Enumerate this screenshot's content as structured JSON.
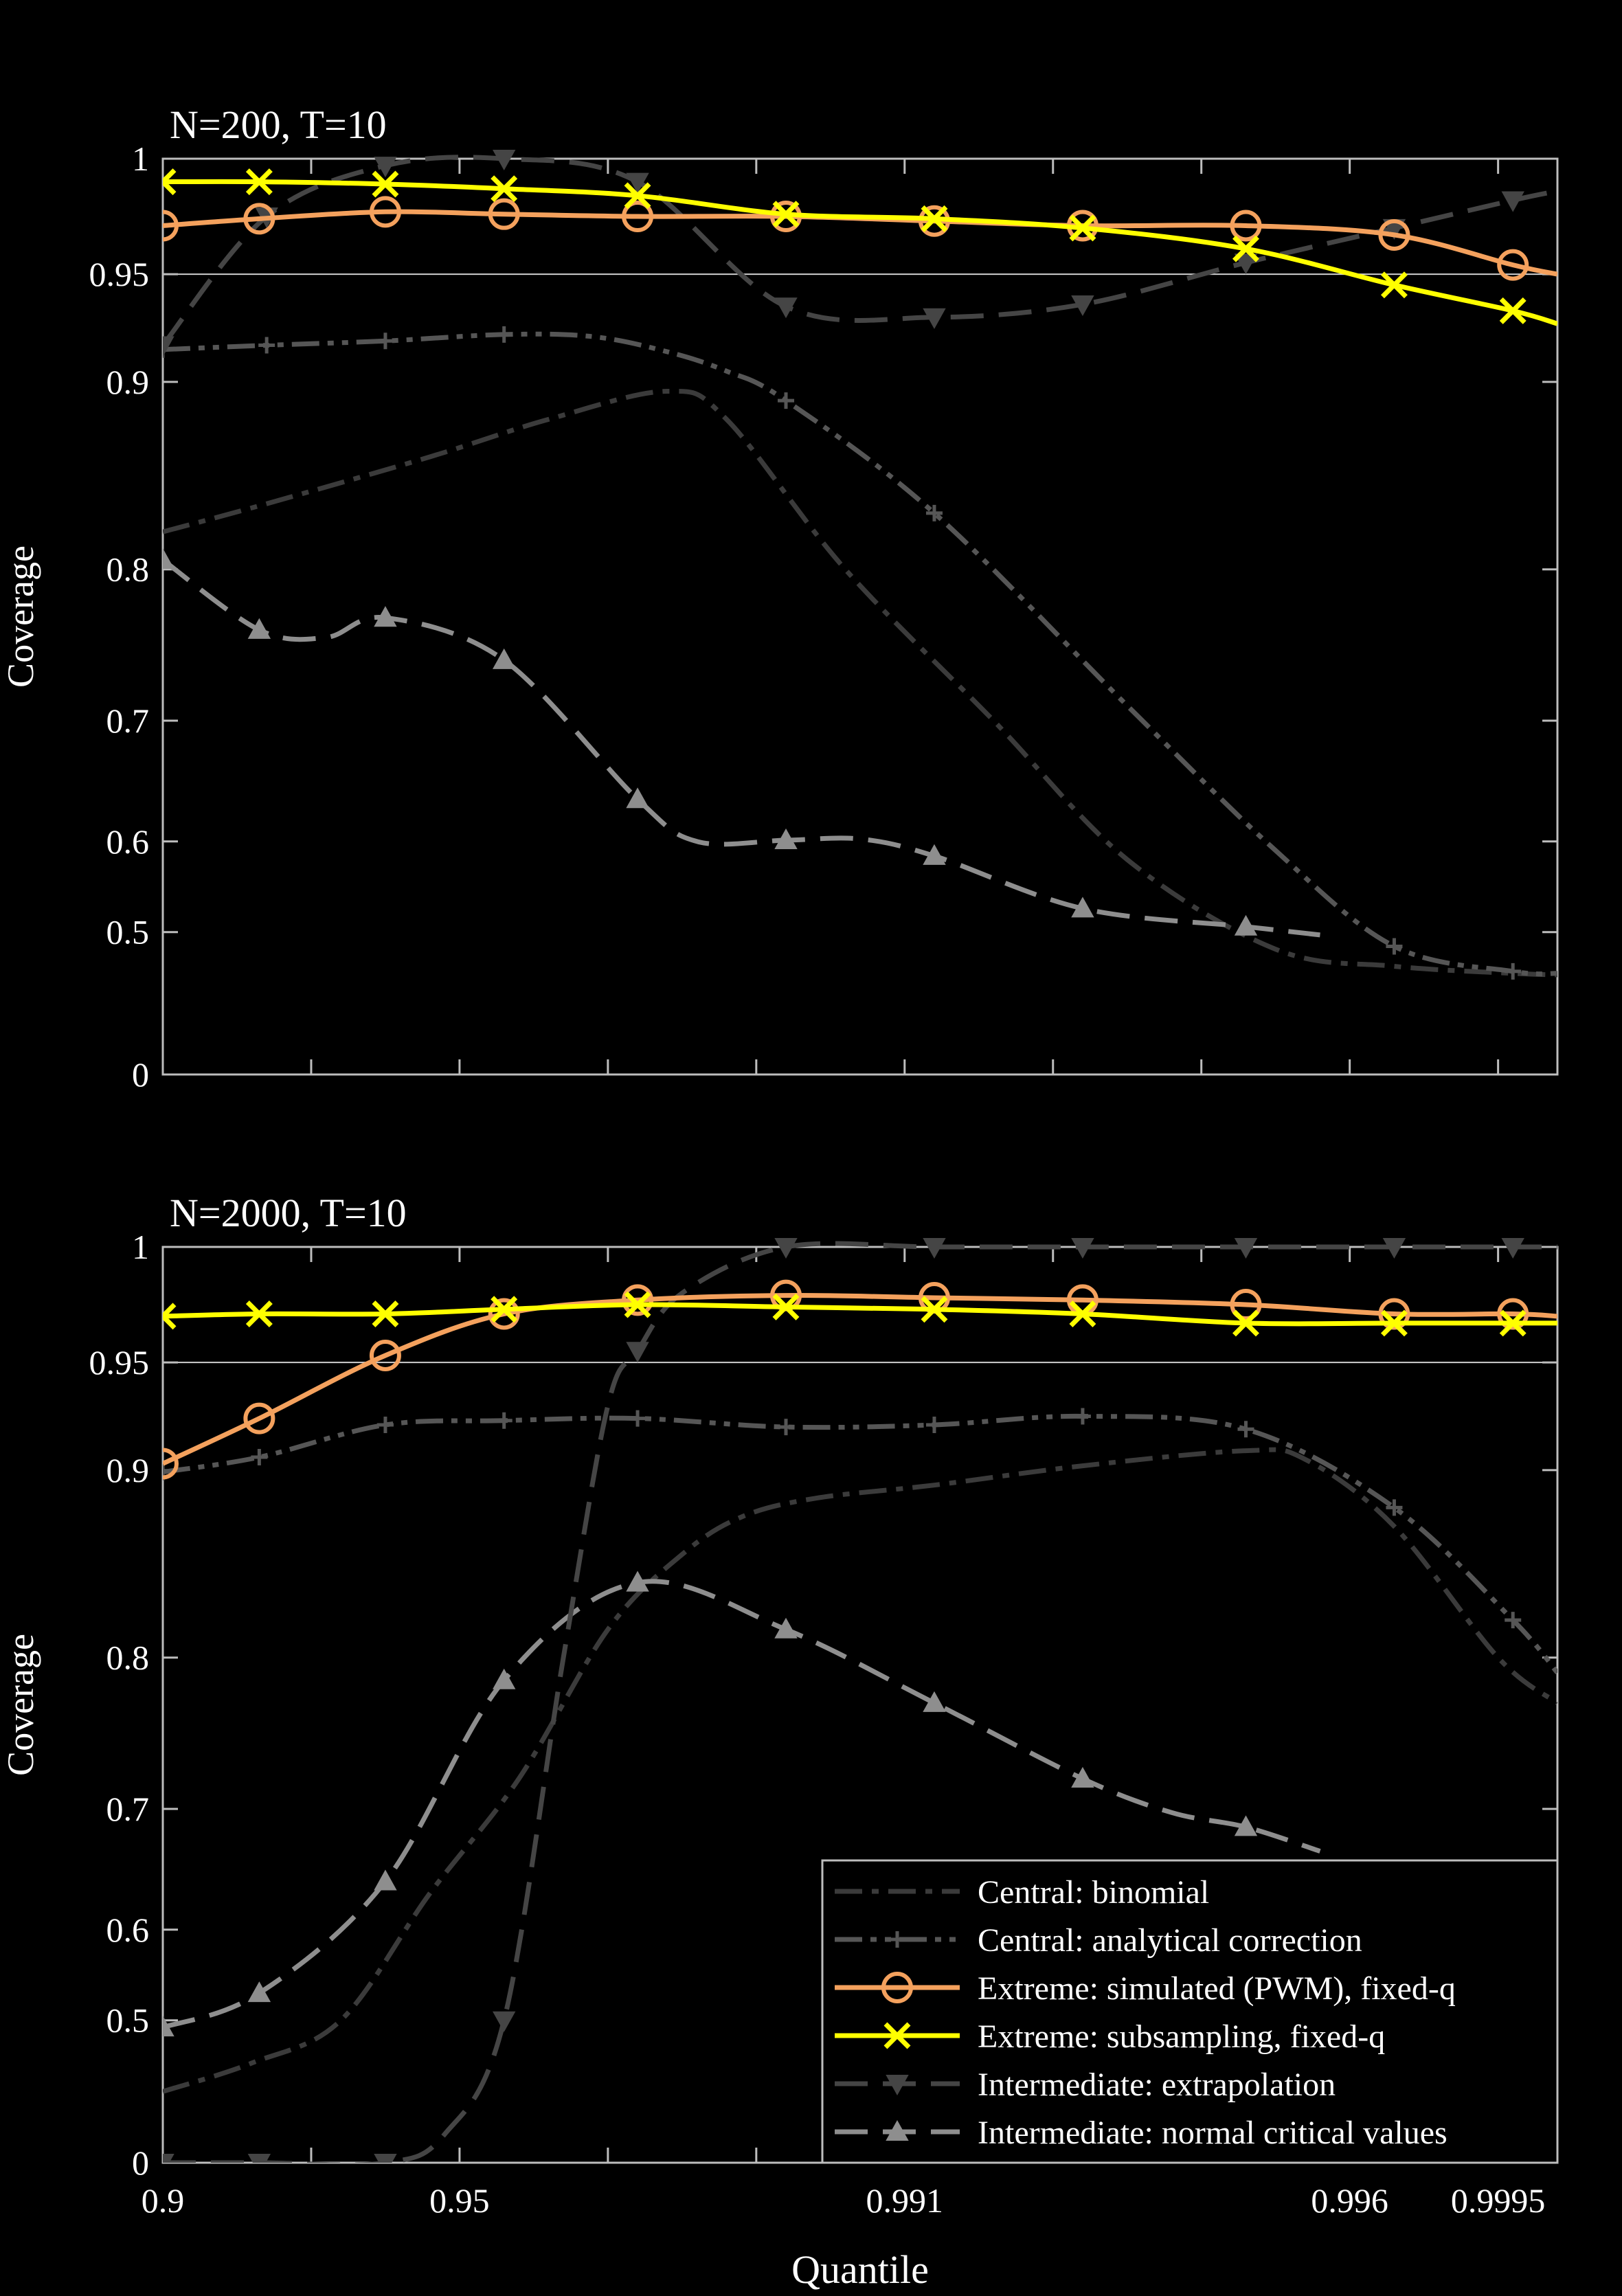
{
  "chart_data": [
    {
      "type": "line",
      "title": "N=200, T=10",
      "xlabel": "",
      "ylabel": "Coverage",
      "x_tick_positions": [
        0,
        1,
        2,
        3,
        4,
        5,
        6,
        7,
        8,
        9
      ],
      "x_tick_labels": [
        "",
        "",
        "",
        "",
        "",
        "",
        "",
        "",
        "",
        ""
      ],
      "y_ticks": [
        {
          "v": 0,
          "label": "0"
        },
        {
          "v": 0.5,
          "label": "0.5"
        },
        {
          "v": 0.6,
          "label": "0.6"
        },
        {
          "v": 0.7,
          "label": "0.7"
        },
        {
          "v": 0.8,
          "label": "0.8"
        },
        {
          "v": 0.9,
          "label": "0.9"
        },
        {
          "v": 0.95,
          "label": "0.95"
        },
        {
          "v": 1,
          "label": "1"
        }
      ],
      "reference_line": 0.95,
      "series": [
        {
          "name": "Central: binomial",
          "x": [
            0,
            0.7,
            1.8,
            2.6,
            3.4,
            3.8,
            4.6,
            5.6,
            6.5,
            7.5,
            8.3,
            9.1,
            9.4
          ],
          "y": [
            0.82,
            0.835,
            0.86,
            0.88,
            0.895,
            0.88,
            0.8,
            0.7,
            0.58,
            0.44,
            0.38,
            0.355,
            0.35
          ]
        },
        {
          "name": "Central: analytical correction",
          "x": [
            0,
            0.7,
            1.5,
            2.3,
            2.9,
            3.4,
            3.8,
            4.2,
            5.2,
            6.5,
            7.5,
            8.3,
            9.1,
            9.4
          ],
          "y": [
            0.915,
            0.917,
            0.919,
            0.922,
            0.921,
            0.914,
            0.905,
            0.89,
            0.83,
            0.71,
            0.59,
            0.45,
            0.362,
            0.355
          ]
        },
        {
          "name": "Extreme: simulated (PWM), fixed-q",
          "x": [
            0,
            0.65,
            1.5,
            2.3,
            3.2,
            4.2,
            5.2,
            6.2,
            7.3,
            8.3,
            9.1,
            9.4
          ],
          "y": [
            0.971,
            0.974,
            0.977,
            0.976,
            0.975,
            0.975,
            0.973,
            0.971,
            0.971,
            0.967,
            0.954,
            0.95
          ]
        },
        {
          "name": "Extreme: subsampling, fixed-q",
          "x": [
            0,
            0.65,
            1.5,
            2.3,
            3.2,
            4.2,
            5.2,
            6.2,
            7.3,
            8.3,
            9.1,
            9.4
          ],
          "y": [
            0.99,
            0.99,
            0.989,
            0.987,
            0.984,
            0.976,
            0.974,
            0.97,
            0.961,
            0.945,
            0.933,
            0.927
          ]
        },
        {
          "name": "Intermediate: extrapolation",
          "x": [
            0,
            0.7,
            1.5,
            2.3,
            3.2,
            4.2,
            5.2,
            6.2,
            7.3,
            8.3,
            9.1,
            9.4
          ],
          "y": [
            0.917,
            0.975,
            0.997,
            1.0,
            0.99,
            0.935,
            0.93,
            0.936,
            0.955,
            0.97,
            0.982,
            0.986
          ]
        },
        {
          "name": "Intermediate: normal critical values",
          "x": [
            0,
            0.65,
            1.1,
            1.5,
            2.3,
            3.2,
            3.6,
            4.2,
            4.7,
            5.2,
            6.2,
            7.3,
            7.8
          ],
          "y": [
            0.805,
            0.76,
            0.755,
            0.768,
            0.74,
            0.635,
            0.6,
            0.601,
            0.602,
            0.584,
            0.526,
            0.506,
            0.49
          ]
        }
      ]
    },
    {
      "type": "line",
      "title": "N=2000, T=10",
      "xlabel": "Quantile",
      "ylabel": "Coverage",
      "x_tick_positions": [
        0,
        1,
        2,
        3,
        4,
        5,
        6,
        7,
        8,
        9
      ],
      "x_tick_labels": [
        "0.9",
        "",
        "0.95",
        "",
        "",
        "0.991",
        "",
        "",
        "0.996",
        "0.9995"
      ],
      "y_ticks": [
        {
          "v": 0,
          "label": "0"
        },
        {
          "v": 0.5,
          "label": "0.5"
        },
        {
          "v": 0.6,
          "label": "0.6"
        },
        {
          "v": 0.7,
          "label": "0.7"
        },
        {
          "v": 0.8,
          "label": "0.8"
        },
        {
          "v": 0.9,
          "label": "0.9"
        },
        {
          "v": 0.95,
          "label": "0.95"
        },
        {
          "v": 1,
          "label": "1"
        }
      ],
      "reference_line": 0.95,
      "series": [
        {
          "name": "Central: binomial",
          "x": [
            0,
            0.6,
            1.2,
            1.8,
            2.4,
            3.0,
            3.5,
            3.9,
            4.4,
            5.2,
            6.2,
            7.3,
            7.7,
            8.3,
            9.0,
            9.4
          ],
          "y": [
            0.25,
            0.35,
            0.5,
            0.63,
            0.72,
            0.815,
            0.855,
            0.875,
            0.885,
            0.892,
            0.902,
            0.909,
            0.905,
            0.87,
            0.8,
            0.77
          ]
        },
        {
          "name": "Central: analytical correction",
          "x": [
            0,
            0.65,
            1.5,
            2.3,
            3.2,
            4.2,
            5.2,
            6.2,
            7.3,
            8.3,
            9.1,
            9.4
          ],
          "y": [
            0.899,
            0.906,
            0.921,
            0.923,
            0.924,
            0.92,
            0.921,
            0.925,
            0.919,
            0.88,
            0.82,
            0.79
          ]
        },
        {
          "name": "Extreme: simulated (PWM), fixed-q",
          "x": [
            0,
            0.65,
            1.5,
            2.3,
            3.2,
            4.2,
            5.2,
            6.2,
            7.3,
            8.3,
            9.1,
            9.4
          ],
          "y": [
            0.903,
            0.924,
            0.953,
            0.971,
            0.977,
            0.979,
            0.978,
            0.977,
            0.975,
            0.971,
            0.971,
            0.97
          ]
        },
        {
          "name": "Extreme: subsampling, fixed-q",
          "x": [
            0,
            0.65,
            1.5,
            2.3,
            3.2,
            4.2,
            5.2,
            6.2,
            7.3,
            8.3,
            9.1,
            9.4
          ],
          "y": [
            0.97,
            0.971,
            0.971,
            0.973,
            0.975,
            0.974,
            0.973,
            0.971,
            0.967,
            0.967,
            0.967,
            0.967
          ]
        },
        {
          "name": "Intermediate: extrapolation",
          "x": [
            0,
            0.65,
            1.5,
            1.9,
            2.3,
            2.7,
            3.0,
            3.2,
            3.5,
            4.2,
            5.2,
            6.2,
            7.3,
            8.3,
            9.1,
            9.4
          ],
          "y": [
            0.0,
            0.0,
            0.0,
            0.1,
            0.5,
            0.8,
            0.93,
            0.955,
            0.98,
            1.0,
            1.0,
            1.0,
            1.0,
            1.0,
            1.0,
            1.0
          ]
        },
        {
          "name": "Intermediate: normal critical values",
          "x": [
            0,
            0.65,
            1.5,
            2.3,
            3.2,
            4.2,
            5.2,
            6.2,
            6.8,
            7.3,
            7.8
          ],
          "y": [
            0.475,
            0.53,
            0.64,
            0.785,
            0.84,
            0.815,
            0.77,
            0.72,
            0.697,
            0.685,
            0.665
          ]
        }
      ]
    }
  ],
  "legend": {
    "placement": "bottom-right of lower panel",
    "entries": [
      {
        "label": "Central: binomial",
        "color": "#3b3b3b",
        "marker": "none",
        "dash": "dashdot"
      },
      {
        "label": "Central: analytical correction",
        "color": "#565656",
        "marker": "plus",
        "dash": "dashdotdot"
      },
      {
        "label": "Extreme: simulated (PWM), fixed-q",
        "color": "#f4a15d",
        "marker": "circle",
        "dash": "solid"
      },
      {
        "label": "Extreme: subsampling, fixed-q",
        "color": "#ffff00",
        "marker": "x",
        "dash": "solid"
      },
      {
        "label": "Intermediate: extrapolation",
        "color": "#454545",
        "marker": "triangle-down",
        "dash": "dash"
      },
      {
        "label": "Intermediate: normal critical values",
        "color": "#8e8e8e",
        "marker": "triangle-up",
        "dash": "dash"
      }
    ]
  },
  "series_styles": {
    "Central: binomial": {
      "color": "#3b3b3b",
      "marker": "none",
      "dash": "dashdot"
    },
    "Central: analytical correction": {
      "color": "#565656",
      "marker": "plus",
      "dash": "dashdotdot"
    },
    "Extreme: simulated (PWM), fixed-q": {
      "color": "#f4a15d",
      "marker": "circle",
      "dash": "solid"
    },
    "Extreme: subsampling, fixed-q": {
      "color": "#ffff00",
      "marker": "x",
      "dash": "solid"
    },
    "Intermediate: extrapolation": {
      "color": "#454545",
      "marker": "triangle-down",
      "dash": "dash"
    },
    "Intermediate: normal critical values": {
      "color": "#8e8e8e",
      "marker": "triangle-up",
      "dash": "dash"
    }
  },
  "colors": {
    "background": "#000000",
    "axes": "#bdbdbd",
    "text": "#ffffff"
  }
}
